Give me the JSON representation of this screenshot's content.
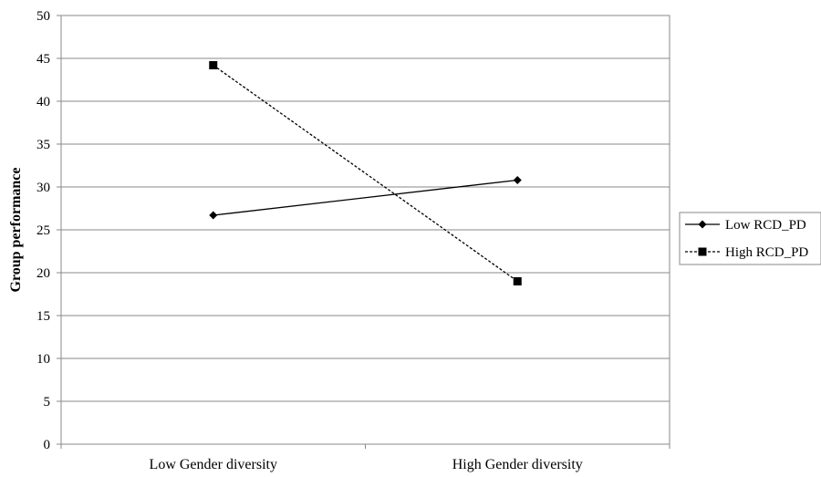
{
  "chart_data": {
    "type": "line",
    "title": "",
    "xlabel": "",
    "ylabel": "Group performance",
    "categories": [
      "Low Gender diversity",
      "High Gender diversity"
    ],
    "ylim": [
      0,
      50
    ],
    "yticks": [
      0,
      5,
      10,
      15,
      20,
      25,
      30,
      35,
      40,
      45,
      50
    ],
    "grid": "horizontal",
    "legend": "right",
    "series": [
      {
        "name": "Low RCD_PD",
        "values": [
          26.7,
          30.8
        ],
        "marker": "diamond",
        "line": "solid",
        "color": "#000000"
      },
      {
        "name": "High RCD_PD",
        "values": [
          44.2,
          19.0
        ],
        "marker": "square",
        "line": "dashed",
        "color": "#000000"
      }
    ]
  }
}
